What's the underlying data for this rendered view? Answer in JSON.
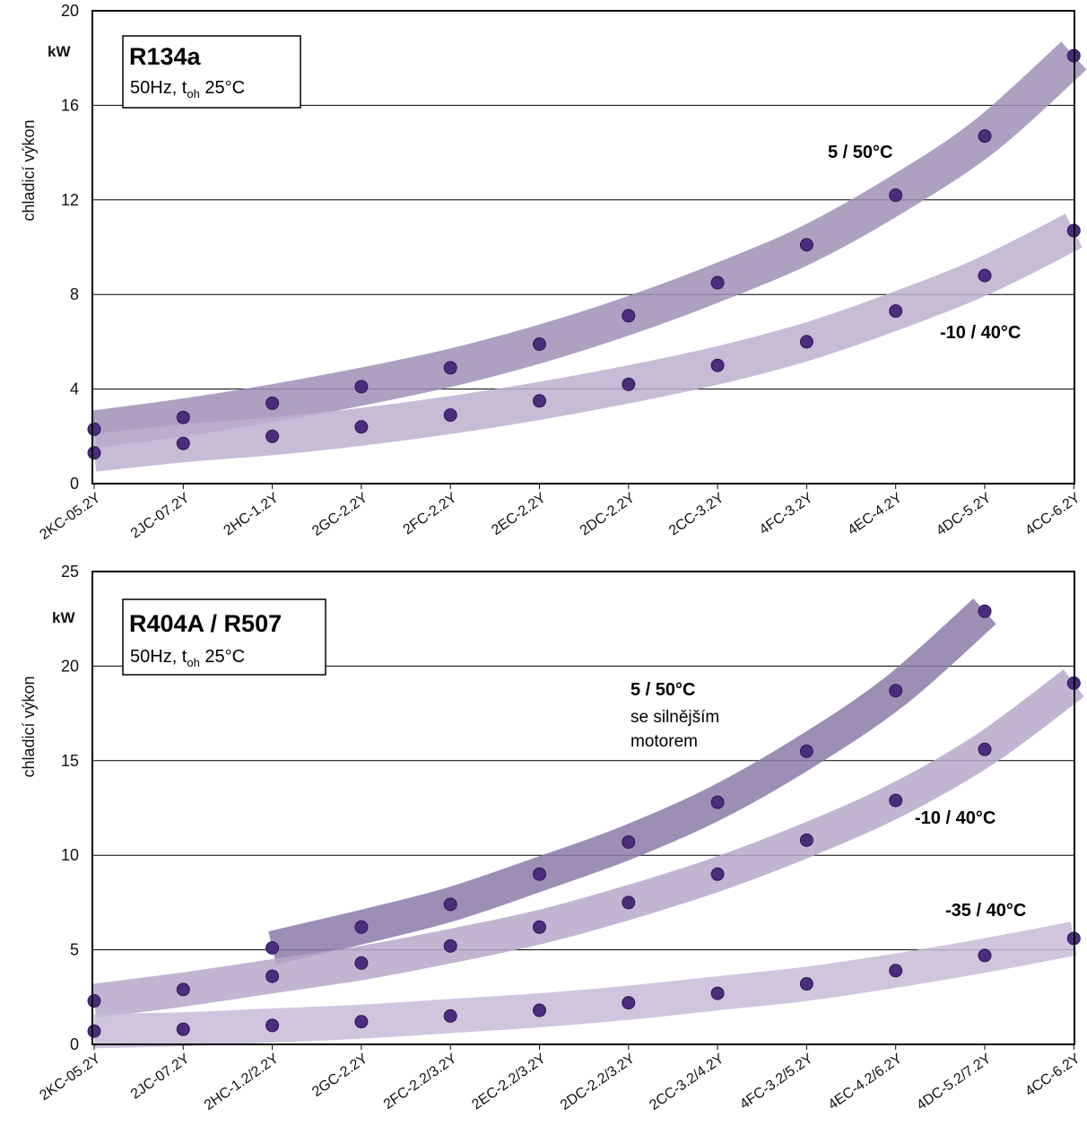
{
  "chart_data": [
    {
      "type": "scatter",
      "title": "R134a",
      "subtitle_pre": "50Hz, t",
      "subtitle_sub": "oh",
      "subtitle_post": " 25°C",
      "ylabel": "chladicí výkon",
      "yunit": "kW",
      "ylim": [
        0,
        20
      ],
      "yticks": [
        "0",
        "4",
        "8",
        "12",
        "16",
        "20"
      ],
      "grid": true,
      "categories": [
        "2KC-05.2Y",
        "2JC-07.2Y",
        "2HC-1.2Y",
        "2GC-2.2Y",
        "2FC-2.2Y",
        "2EC-2.2Y",
        "2DC-2.2Y",
        "2CC-3.2Y",
        "4FC-3.2Y",
        "4EC-4.2Y",
        "4DC-5.2Y",
        "4CC-6.2Y"
      ],
      "series": [
        {
          "name": "5 / 50°C",
          "values": [
            2.3,
            2.8,
            3.4,
            4.1,
            4.9,
            5.9,
            7.1,
            8.5,
            10.1,
            12.2,
            14.7,
            18.1
          ]
        },
        {
          "name": "-10 / 40°C",
          "values": [
            1.3,
            1.7,
            2.0,
            2.4,
            2.9,
            3.5,
            4.2,
            5.0,
            6.0,
            7.3,
            8.8,
            10.7
          ]
        }
      ]
    },
    {
      "type": "scatter",
      "title": "R404A / R507",
      "subtitle_pre": "50Hz, t",
      "subtitle_sub": "oh",
      "subtitle_post": " 25°C",
      "ylabel": "chladicí výkon",
      "yunit": "kW",
      "ylim": [
        0,
        25
      ],
      "yticks": [
        "0",
        "5",
        "10",
        "15",
        "20",
        "25"
      ],
      "grid": true,
      "categories": [
        "2KC-05.2Y",
        "2JC-07.2Y",
        "2HC-1.2/2.2Y",
        "2GC-2.2Y",
        "2FC-2.2/3.2Y",
        "2EC-2.2/3.2Y",
        "2DC-2.2/3.2Y",
        "2CC-3.2/4.2Y",
        "4FC-3.2/5.2Y",
        "4EC-4.2/6.2Y",
        "4DC-5.2/7.2Y",
        "4CC-6.2Y"
      ],
      "series": [
        {
          "name": "5 / 50°C",
          "name_line2": "se silnějším",
          "name_line3": "motorem",
          "values": [
            null,
            null,
            5.1,
            6.2,
            7.4,
            9.0,
            10.7,
            12.8,
            15.5,
            18.7,
            22.9,
            null
          ]
        },
        {
          "name": "-10 / 40°C",
          "values": [
            2.3,
            2.9,
            3.6,
            4.3,
            5.2,
            6.2,
            7.5,
            9.0,
            10.8,
            12.9,
            15.6,
            19.1
          ]
        },
        {
          "name": "-35 / 40°C",
          "values": [
            0.7,
            0.8,
            1.0,
            1.2,
            1.5,
            1.8,
            2.2,
            2.7,
            3.2,
            3.9,
            4.7,
            5.6
          ]
        }
      ]
    }
  ]
}
